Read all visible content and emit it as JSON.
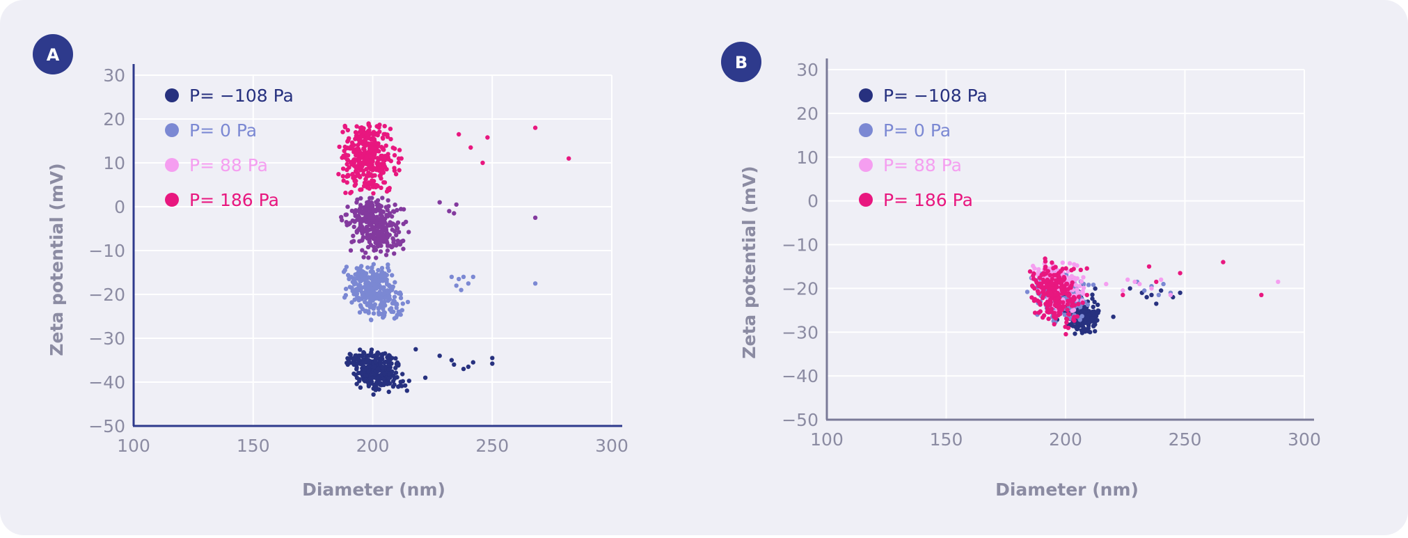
{
  "panels": [
    {
      "badge": "A",
      "axis_color": "#2e3a8c",
      "chart_data": {
        "type": "scatter",
        "xlabel": "Diameter (nm)",
        "ylabel": "Zeta potential (mV)",
        "xlim": [
          100,
          300
        ],
        "ylim": [
          -50,
          30
        ],
        "x_ticks": [
          100,
          150,
          200,
          250,
          300
        ],
        "y_ticks": [
          30,
          20,
          10,
          0,
          -10,
          -20,
          -30,
          -40,
          -50
        ],
        "grid": true,
        "legend_position": "top-left",
        "legend": [
          {
            "label": "P= −108 Pa",
            "color": "#27317f"
          },
          {
            "label": "P= 0 Pa",
            "color": "#7b88d3"
          },
          {
            "label": "P= 88 Pa",
            "color": "#f59ef0"
          },
          {
            "label": "P= 186 Pa",
            "color": "#e8177f"
          }
        ],
        "clusters": [
          {
            "color": "#e8177f",
            "n": 340,
            "cx": 198,
            "cy": 11,
            "sx": 6,
            "sy": 4.5,
            "xmin": 185,
            "xmax": 216,
            "ymin": 3,
            "ymax": 19,
            "tilt": -0.05
          },
          {
            "color": "#833a9e",
            "n": 320,
            "cx": 201,
            "cy": -4,
            "sx": 5.5,
            "sy": 3.5,
            "xmin": 186,
            "xmax": 216,
            "ymin": -12,
            "ymax": 2,
            "tilt": -0.2
          },
          {
            "color": "#7b88d3",
            "n": 320,
            "cx": 201,
            "cy": -19,
            "sx": 5.5,
            "sy": 3,
            "xmin": 186,
            "xmax": 216,
            "ymin": -26,
            "ymax": -13,
            "tilt": -0.25
          },
          {
            "color": "#27317f",
            "n": 300,
            "cx": 201,
            "cy": -37,
            "sx": 5.5,
            "sy": 2.2,
            "xmin": 182,
            "xmax": 217,
            "ymin": -43,
            "ymax": -32,
            "tilt": -0.12
          }
        ],
        "outliers": [
          {
            "color": "#e8177f",
            "x": [
              236,
              241,
              248,
              246,
              268,
              282
            ],
            "y": [
              16.5,
              13.5,
              15.8,
              10,
              18,
              11
            ]
          },
          {
            "color": "#833a9e",
            "x": [
              228,
              232,
              234,
              235,
              268
            ],
            "y": [
              1,
              -1,
              -1.5,
              0.5,
              -2.5
            ]
          },
          {
            "color": "#7b88d3",
            "x": [
              233,
              235,
              236,
              237,
              238,
              240,
              242,
              268
            ],
            "y": [
              -16,
              -18,
              -16.5,
              -19,
              -16,
              -17.5,
              -16,
              -17.5
            ]
          },
          {
            "color": "#27317f",
            "x": [
              218,
              222,
              228,
              233,
              234,
              238,
              240,
              242,
              250,
              250
            ],
            "y": [
              -32.5,
              -39,
              -34,
              -35,
              -36,
              -37,
              -36.5,
              -35.5,
              -35.8,
              -34.5
            ]
          }
        ]
      }
    },
    {
      "badge": "B",
      "axis_color": "#7a7a98",
      "chart_data": {
        "type": "scatter",
        "xlabel": "Diameter (nm)",
        "ylabel": "Zeta potential (mV)",
        "xlim": [
          100,
          300
        ],
        "ylim": [
          -50,
          30
        ],
        "x_ticks": [
          100,
          150,
          200,
          250,
          300
        ],
        "y_ticks": [
          30,
          20,
          10,
          0,
          -10,
          -20,
          -30,
          -40,
          -50
        ],
        "grid": true,
        "legend_position": "top-left",
        "legend": [
          {
            "label": "P= −108 Pa",
            "color": "#27317f"
          },
          {
            "label": "P= 0 Pa",
            "color": "#7b88d3"
          },
          {
            "label": "P= 88 Pa",
            "color": "#f59ef0"
          },
          {
            "label": "P= 186 Pa",
            "color": "#e8177f"
          }
        ],
        "clusters": [
          {
            "color": "#27317f",
            "n": 200,
            "cx": 206,
            "cy": -25,
            "sx": 4.5,
            "sy": 2.5,
            "xmin": 184,
            "xmax": 214,
            "ymin": -31,
            "ymax": -17,
            "tilt": -0.2
          },
          {
            "color": "#7b88d3",
            "n": 200,
            "cx": 198,
            "cy": -21.5,
            "sx": 5,
            "sy": 2.8,
            "xmin": 183,
            "xmax": 214,
            "ymin": -29,
            "ymax": -16,
            "tilt": -0.15
          },
          {
            "color": "#f59ef0",
            "n": 200,
            "cx": 197,
            "cy": -19,
            "sx": 5,
            "sy": 2.5,
            "xmin": 186,
            "xmax": 214,
            "ymin": -26,
            "ymax": -14,
            "tilt": -0.1
          },
          {
            "color": "#e8177f",
            "n": 240,
            "cx": 195,
            "cy": -21,
            "sx": 5,
            "sy": 3.2,
            "xmin": 184,
            "xmax": 212,
            "ymin": -31,
            "ymax": -12.5,
            "tilt": -0.1
          }
        ],
        "outliers": [
          {
            "color": "#27317f",
            "x": [
              220,
              227,
              232,
              234,
              236,
              238,
              240,
              245,
              248
            ],
            "y": [
              -26.5,
              -20,
              -21,
              -22,
              -21.5,
              -23.5,
              -20.5,
              -22,
              -21
            ]
          },
          {
            "color": "#7b88d3",
            "x": [
              230,
              233,
              236,
              239,
              241,
              244
            ],
            "y": [
              -18.5,
              -20.5,
              -19.5,
              -21.5,
              -19,
              -21
            ]
          },
          {
            "color": "#f59ef0",
            "x": [
              217,
              224,
              226,
              229,
              231,
              236,
              240,
              244,
              289
            ],
            "y": [
              -19,
              -20.5,
              -18,
              -18.5,
              -19,
              -20,
              -18,
              -21.5,
              -18.5
            ]
          },
          {
            "color": "#e8177f",
            "x": [
              224,
              235,
              238,
              248,
              266,
              282
            ],
            "y": [
              -21.5,
              -15,
              -18.5,
              -16.5,
              -14,
              -21.5
            ]
          }
        ]
      }
    }
  ]
}
